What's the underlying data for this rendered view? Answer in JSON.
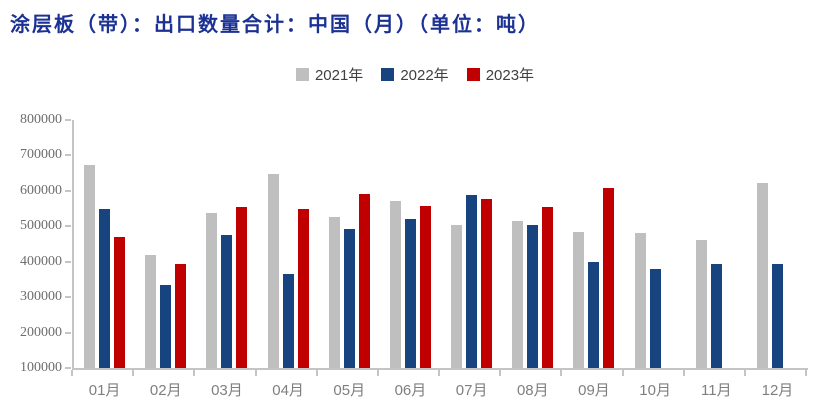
{
  "title": "涂层板（带）：出口数量合计：中国（月）（单位：吨）",
  "colors": {
    "title_text": "#1B3193",
    "axis_line": "#C4C4C4",
    "axis_label": "#7F7F7F",
    "legend_text": "#404040",
    "series_2021": "#BFBFBF",
    "series_2022": "#17437F",
    "series_2023": "#C00000"
  },
  "chart_data": {
    "type": "bar",
    "title": "涂层板（带）：出口数量合计：中国（月）（单位：吨）",
    "legend_position": "top-center",
    "grid": false,
    "categories": [
      "01月",
      "02月",
      "03月",
      "04月",
      "05月",
      "06月",
      "07月",
      "08月",
      "09月",
      "10月",
      "11月",
      "12月"
    ],
    "series": [
      {
        "name": "2021年",
        "color": "#BFBFBF",
        "values": [
          673000,
          420000,
          538000,
          648000,
          527000,
          572000,
          505000,
          515000,
          485000,
          482000,
          460000,
          622000
        ]
      },
      {
        "name": "2022年",
        "color": "#17437F",
        "values": [
          548000,
          333000,
          475000,
          365000,
          493000,
          522000,
          588000,
          505000,
          400000,
          380000,
          395000,
          395000
        ]
      },
      {
        "name": "2023年",
        "color": "#C00000",
        "values": [
          471000,
          395000,
          555000,
          548000,
          590000,
          558000,
          577000,
          555000,
          608000,
          null,
          null,
          null
        ]
      }
    ],
    "xlabel": "",
    "ylabel": "",
    "ylim": [
      100000,
      800000
    ],
    "ytick_step": 100000,
    "yticks": [
      "800000",
      "700000",
      "600000",
      "500000",
      "400000",
      "300000",
      "200000",
      "100000"
    ]
  }
}
